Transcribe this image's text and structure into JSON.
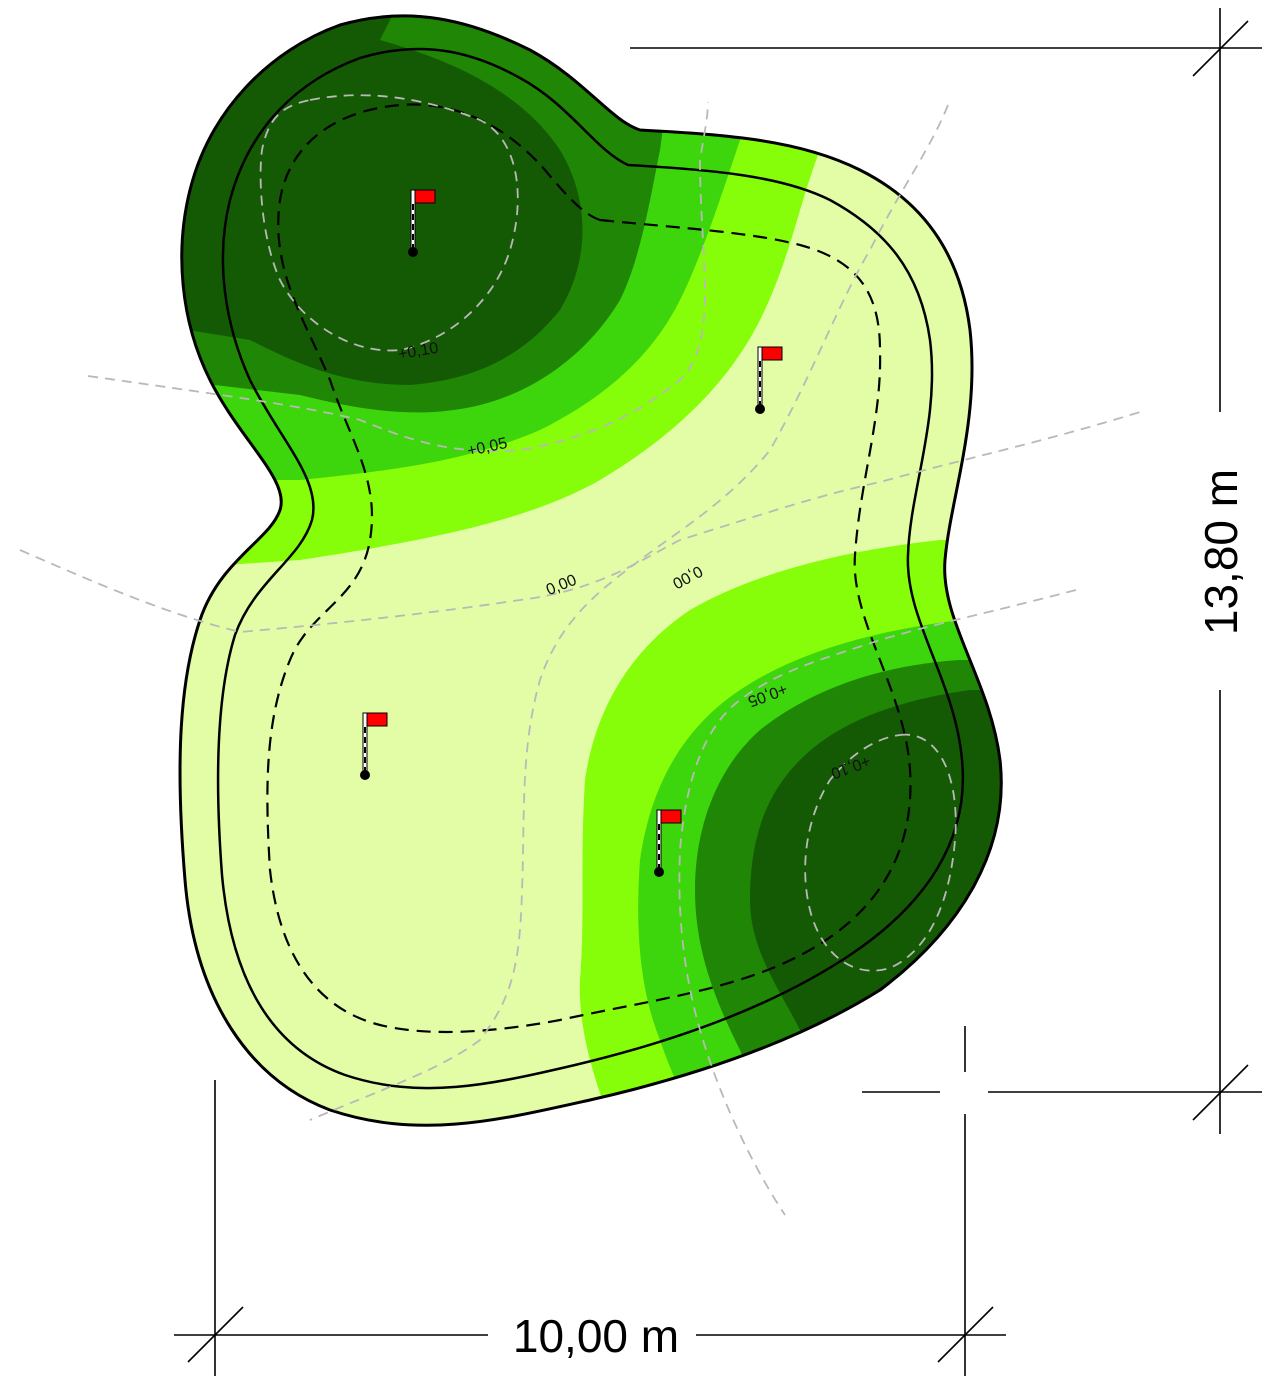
{
  "dimensions": {
    "width_label": "10,00 m",
    "height_label": "13,80 m"
  },
  "contours": {
    "top_left_outer": "+0,05",
    "top_left_inner": "+0,10",
    "center_left": "0,00",
    "center_right": "0,00",
    "bottom_right_outer": "+0,05",
    "bottom_right_inner": "+0,10"
  },
  "colors": {
    "lightest": "#e2fda6",
    "light": "#86fd09",
    "mid": "#3dd50b",
    "dark": "#208605",
    "darkest": "#145a04",
    "flag": "#ff0000"
  },
  "holes": [
    "flag-1",
    "flag-2",
    "flag-3",
    "flag-4"
  ]
}
